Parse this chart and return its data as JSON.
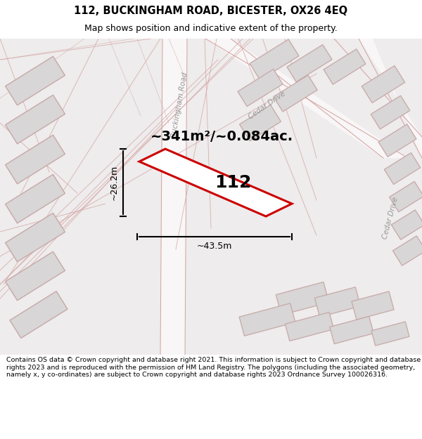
{
  "title_line1": "112, BUCKINGHAM ROAD, BICESTER, OX26 4EQ",
  "title_line2": "Map shows position and indicative extent of the property.",
  "footer_text": "Contains OS data © Crown copyright and database right 2021. This information is subject to Crown copyright and database rights 2023 and is reproduced with the permission of HM Land Registry. The polygons (including the associated geometry, namely x, y co-ordinates) are subject to Crown copyright and database rights 2023 Ordnance Survey 100026316.",
  "area_label": "~341m²/~0.084ac.",
  "number_label": "112",
  "width_label": "~43.5m",
  "height_label": "~26.2m",
  "road_label_buckingham": "Buckingham Road",
  "road_label_cedar_upper": "Cedar Drive",
  "road_label_cedar_right": "Cedar Drive",
  "map_bg": "#eeecec",
  "property_fill": "#ffffff",
  "property_edge": "#cc0000",
  "building_fill": "#d8d6d6",
  "building_edge": "#c8a8a8",
  "road_fill": "#f8f6f6",
  "line_color": "#d4a0a0",
  "title_fontsize": 10.5,
  "subtitle_fontsize": 9,
  "footer_fontsize": 6.8
}
